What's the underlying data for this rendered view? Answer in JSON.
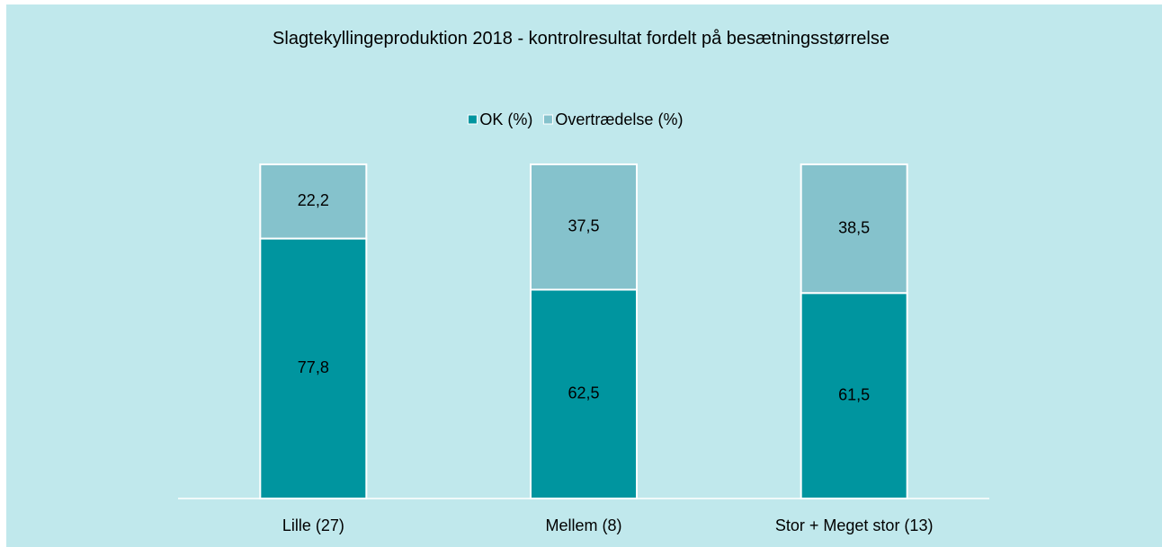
{
  "chart_data": {
    "type": "stacked_bar",
    "title": "Slagtekyllingeproduktion 2018 - kontrolresultat fordelt på besætningsstørrelse",
    "categories": [
      "Lille (27)",
      "Mellem (8)",
      "Stor + Meget stor (13)"
    ],
    "series": [
      {
        "name": "OK (%)",
        "color": "#00959f",
        "values": [
          77.8,
          62.5,
          61.5
        ],
        "value_labels": [
          "77,8",
          "62,5",
          "61,5"
        ]
      },
      {
        "name": "Overtrædelse (%)",
        "color": "#85c2cc",
        "values": [
          22.2,
          37.5,
          38.5
        ],
        "value_labels": [
          "22,2",
          "37,5",
          "38,5"
        ]
      }
    ],
    "ylim": [
      0,
      100
    ],
    "legend": "top"
  }
}
